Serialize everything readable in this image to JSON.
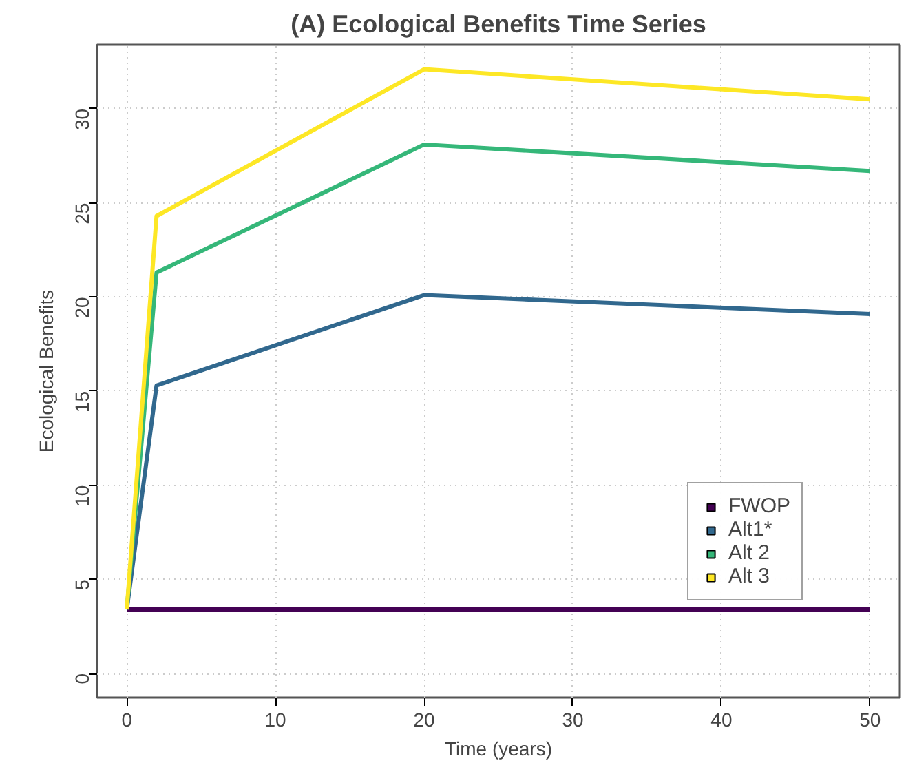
{
  "chart_data": {
    "type": "line",
    "title": "(A) Ecological Benefits Time Series",
    "xlabel": "Time (years)",
    "ylabel": "Ecological Benefits",
    "x": [
      0,
      2,
      20,
      50
    ],
    "series": [
      {
        "name": "FWOP",
        "color": "#440154",
        "values": [
          3.4,
          3.4,
          3.4,
          3.4
        ]
      },
      {
        "name": "Alt1*",
        "color": "#31688e",
        "values": [
          3.4,
          15.3,
          20.1,
          19.1
        ]
      },
      {
        "name": "Alt 2",
        "color": "#35b779",
        "values": [
          3.4,
          21.3,
          28.1,
          26.7
        ]
      },
      {
        "name": "Alt 3",
        "color": "#fde725",
        "values": [
          3.4,
          24.3,
          32.1,
          30.5
        ]
      }
    ],
    "xlim": [
      -2,
      52
    ],
    "ylim": [
      -1.28,
      33.4
    ],
    "xticks": [
      0,
      10,
      20,
      30,
      40,
      50
    ],
    "yticks": [
      0,
      5,
      10,
      15,
      20,
      25,
      30
    ],
    "grid": true,
    "legend": "bottom right",
    "marker": "none",
    "line_style": "solid"
  }
}
